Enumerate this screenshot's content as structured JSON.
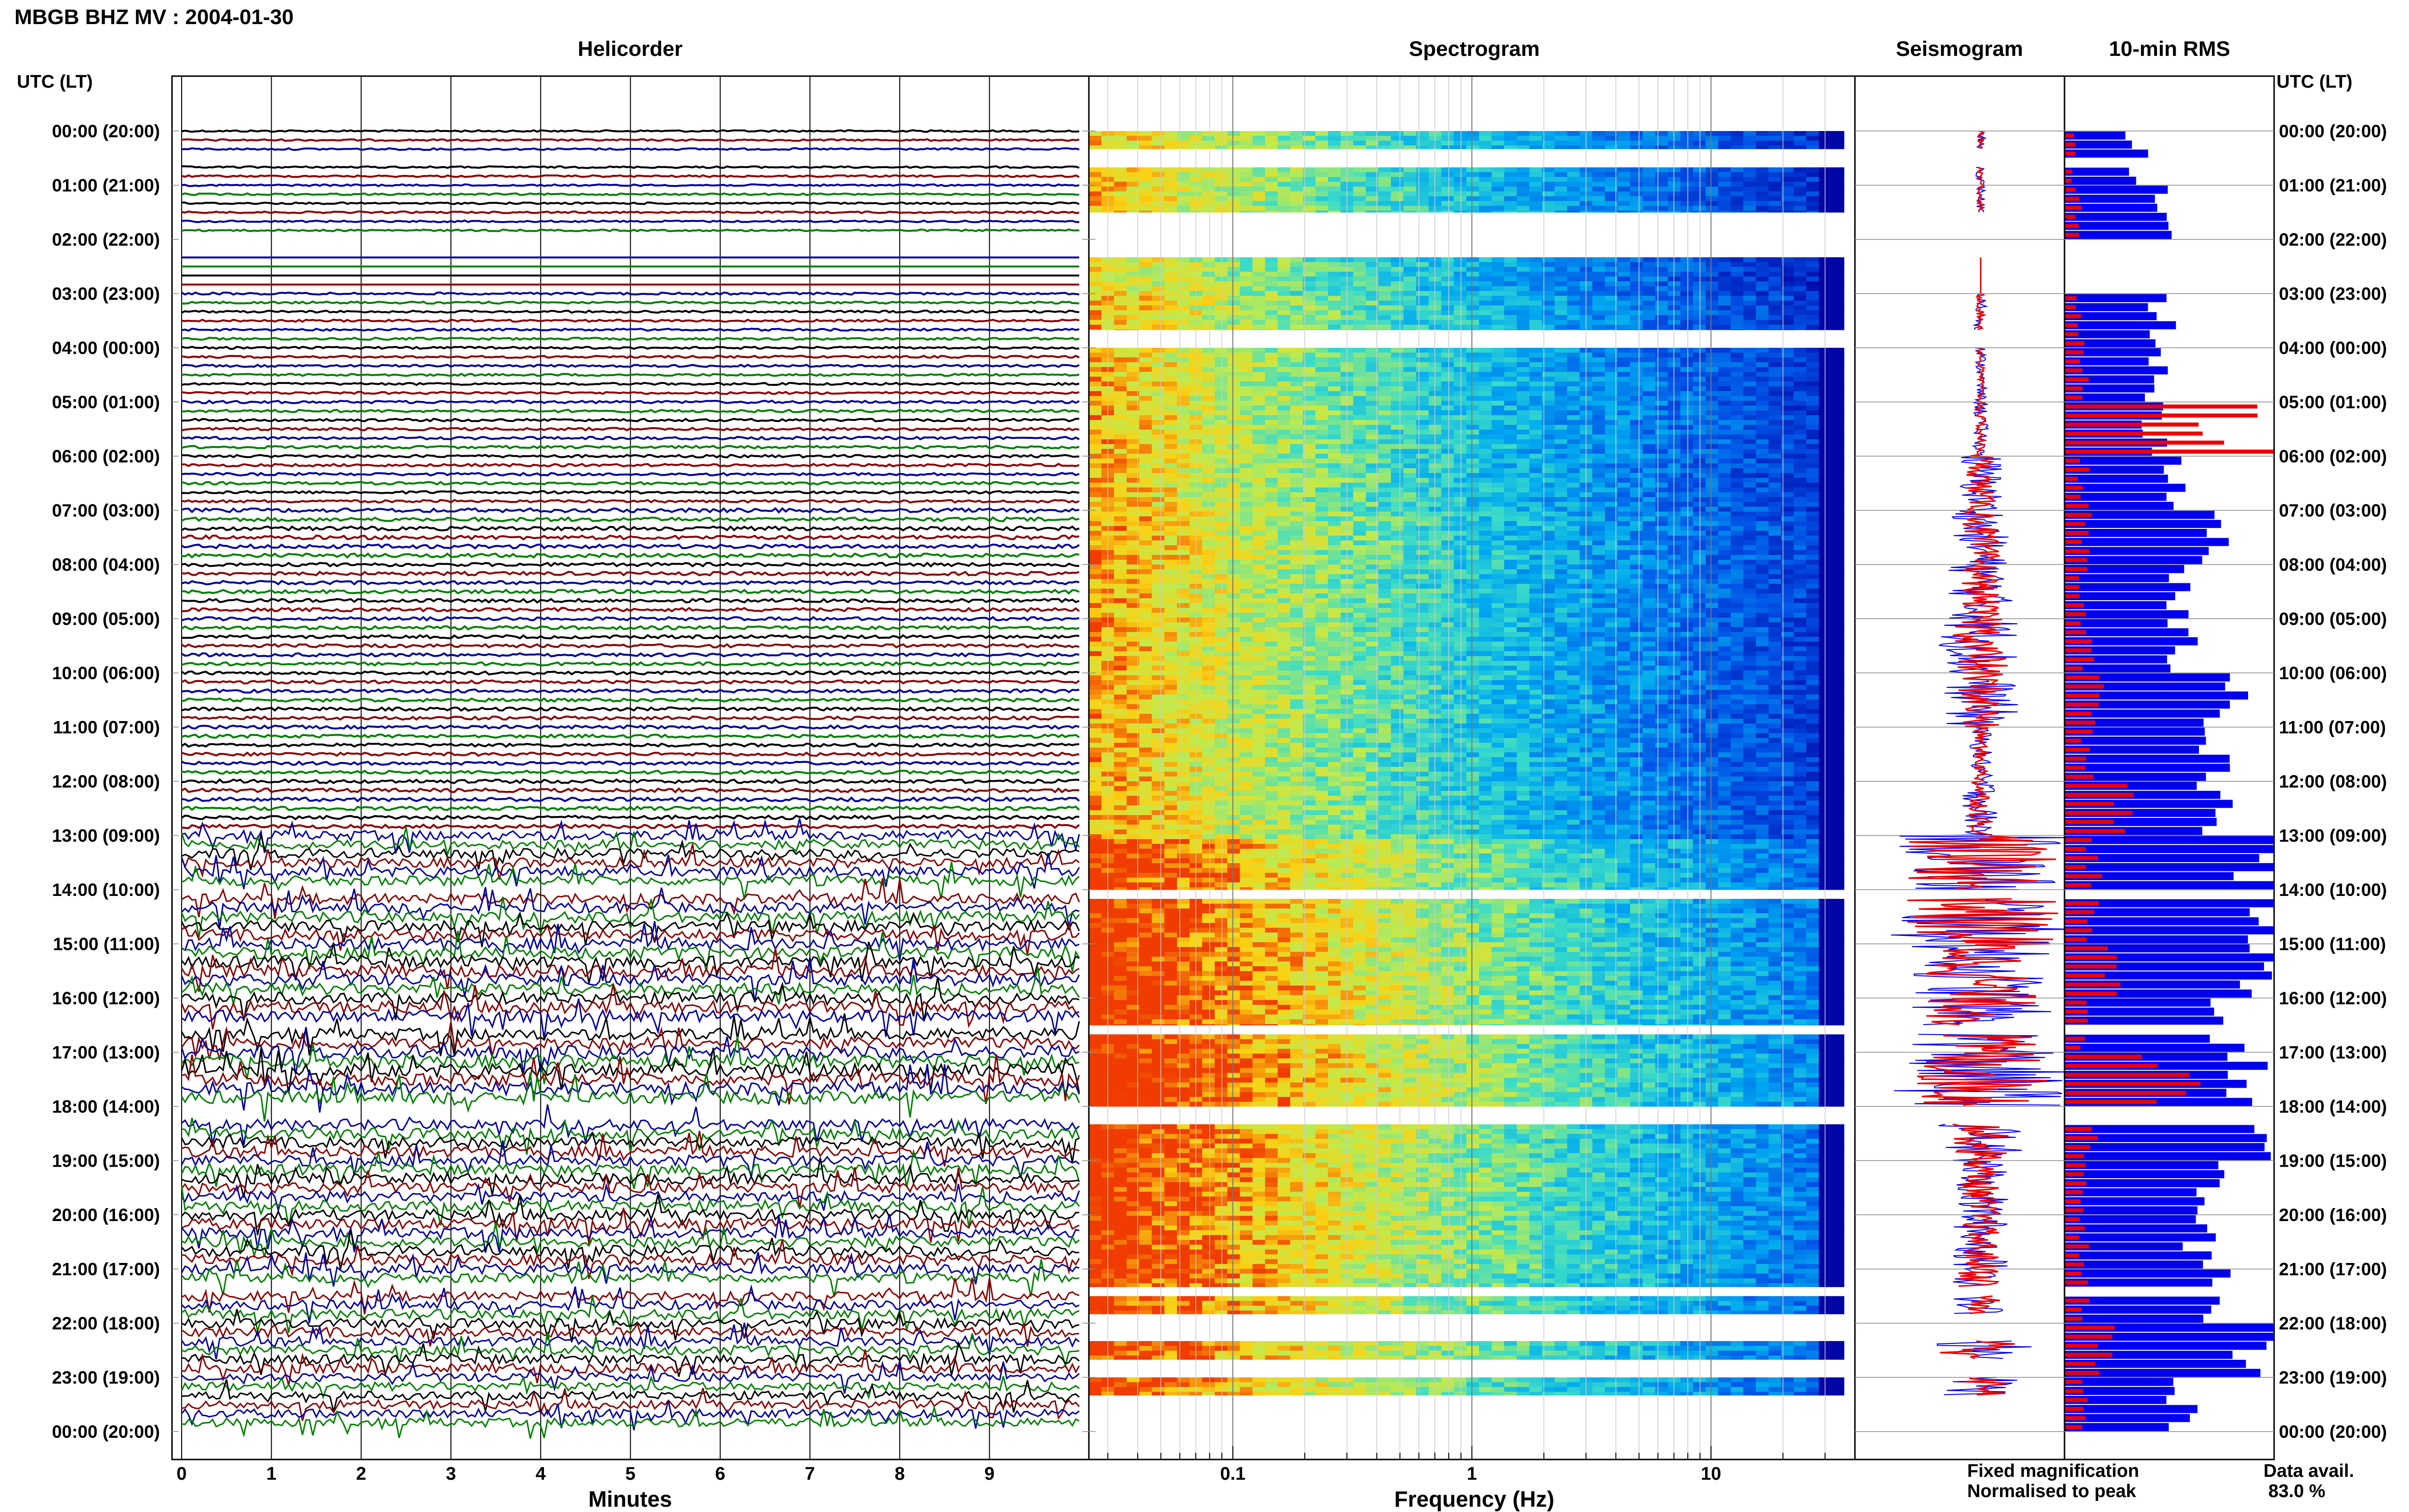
{
  "header": {
    "title": "MBGB BHZ MV : 2004-01-30"
  },
  "panels": {
    "helicorder": "Helicorder",
    "spectrogram": "Spectrogram",
    "seismogram": "Seismogram",
    "rms": "10-min RMS"
  },
  "time_axis": {
    "label": "UTC (LT)",
    "ticks": [
      "00:00 (20:00)",
      "01:00 (21:00)",
      "02:00 (22:00)",
      "03:00 (23:00)",
      "04:00 (00:00)",
      "05:00 (01:00)",
      "06:00 (02:00)",
      "07:00 (03:00)",
      "08:00 (04:00)",
      "09:00 (05:00)",
      "10:00 (06:00)",
      "11:00 (07:00)",
      "12:00 (08:00)",
      "13:00 (09:00)",
      "14:00 (10:00)",
      "15:00 (11:00)",
      "16:00 (12:00)",
      "17:00 (13:00)",
      "18:00 (14:00)",
      "19:00 (15:00)",
      "20:00 (16:00)",
      "21:00 (17:00)",
      "22:00 (18:00)",
      "23:00 (19:00)",
      "00:00 (20:00)"
    ]
  },
  "minutes_axis": {
    "label": "Minutes",
    "ticks": [
      "0",
      "1",
      "2",
      "3",
      "4",
      "5",
      "6",
      "7",
      "8",
      "9"
    ]
  },
  "frequency_axis": {
    "label": "Frequency (Hz)",
    "ticks": [
      "0.1",
      "1",
      "10"
    ]
  },
  "legend": {
    "fixed": "Fixed magnification",
    "normalised": "Normalised to peak",
    "fixed_color": "#0000ee",
    "normalised_color": "#ee0000"
  },
  "availability": {
    "label": "Data avail.",
    "value": "83.0 %"
  },
  "colors": {
    "trace_cycle": [
      "#000000",
      "#8b0000",
      "#0000a0",
      "#008000"
    ],
    "rms_fixed": "#0000ee",
    "rms_normalised": "#ee0000"
  },
  "chart_data": [
    {
      "type": "line",
      "title": "Helicorder",
      "xlabel": "Minutes",
      "xlim": [
        0,
        10
      ],
      "ylabel": "UTC (LT)",
      "rows_per_hour": 6,
      "missing_intervals_hours": [
        [
          0.5,
          0.67
        ],
        [
          2.0,
          2.33
        ],
        [
          14.0,
          14.17
        ],
        [
          16.5,
          16.67
        ],
        [
          18.0,
          18.33
        ],
        [
          21.33,
          21.5
        ]
      ],
      "activity_by_hour": [
        0.8,
        0.8,
        0.0,
        1.0,
        1.0,
        1.2,
        1.2,
        1.8,
        1.6,
        1.5,
        1.5,
        1.5,
        1.7,
        4.5,
        5.0,
        5.5,
        5.5,
        6.0,
        5.0,
        5.0,
        5.0,
        4.5,
        4.5,
        4.0
      ]
    },
    {
      "type": "heatmap",
      "title": "Spectrogram",
      "xlabel": "Frequency (Hz)",
      "xscale": "log",
      "xlim": [
        0.025,
        40
      ],
      "data_rows_hours": [
        [
          0.0,
          0.33
        ],
        [
          0.67,
          1.5
        ],
        [
          2.33,
          3.67
        ],
        [
          4.0,
          14.0
        ],
        [
          14.17,
          16.5
        ],
        [
          16.67,
          18.0
        ],
        [
          18.33,
          21.33
        ],
        [
          21.5,
          21.83
        ],
        [
          22.33,
          22.67
        ],
        [
          23.0,
          23.33
        ]
      ]
    },
    {
      "type": "line",
      "title": "Seismogram",
      "series": [
        {
          "name": "Fixed magnification",
          "amplitude_by_hour": [
            0.05,
            0.05,
            0,
            0.07,
            0.06,
            0.08,
            0.25,
            0.3,
            0.35,
            0.45,
            0.4,
            0.12,
            0.2,
            0.9,
            1.0,
            0.75,
            0.75,
            0.95,
            0.45,
            0.3,
            0.3,
            0.3,
            0.55,
            0.4
          ]
        },
        {
          "name": "Normalised to peak",
          "amplitude_by_hour": [
            0.03,
            0.03,
            0,
            0.04,
            0.04,
            0.05,
            0.15,
            0.2,
            0.2,
            0.3,
            0.25,
            0.08,
            0.12,
            0.8,
            0.85,
            0.6,
            0.6,
            0.75,
            0.3,
            0.2,
            0.2,
            0.25,
            0.45,
            0.3
          ]
        }
      ]
    },
    {
      "type": "bar",
      "title": "10-min RMS",
      "series": [
        {
          "name": "Fixed magnification",
          "values_by_hour": [
            0.35,
            0.45,
            0,
            0.48,
            0.45,
            0.45,
            0.55,
            0.75,
            0.55,
            0.6,
            0.8,
            0.7,
            0.75,
            1.0,
            0.98,
            0.96,
            0.85,
            0.95,
            0.96,
            0.75,
            0.7,
            0.7,
            0.98,
            0.6
          ]
        },
        {
          "name": "Normalised to peak",
          "values_by_hour": [
            0.05,
            0.08,
            0,
            0.08,
            0.1,
            0.95,
            0.1,
            0.12,
            0.1,
            0.12,
            0.18,
            0.12,
            0.3,
            0.15,
            0.15,
            0.25,
            0.12,
            0.55,
            0.15,
            0.1,
            0.1,
            0.1,
            0.2,
            0.1
          ]
        }
      ]
    }
  ]
}
